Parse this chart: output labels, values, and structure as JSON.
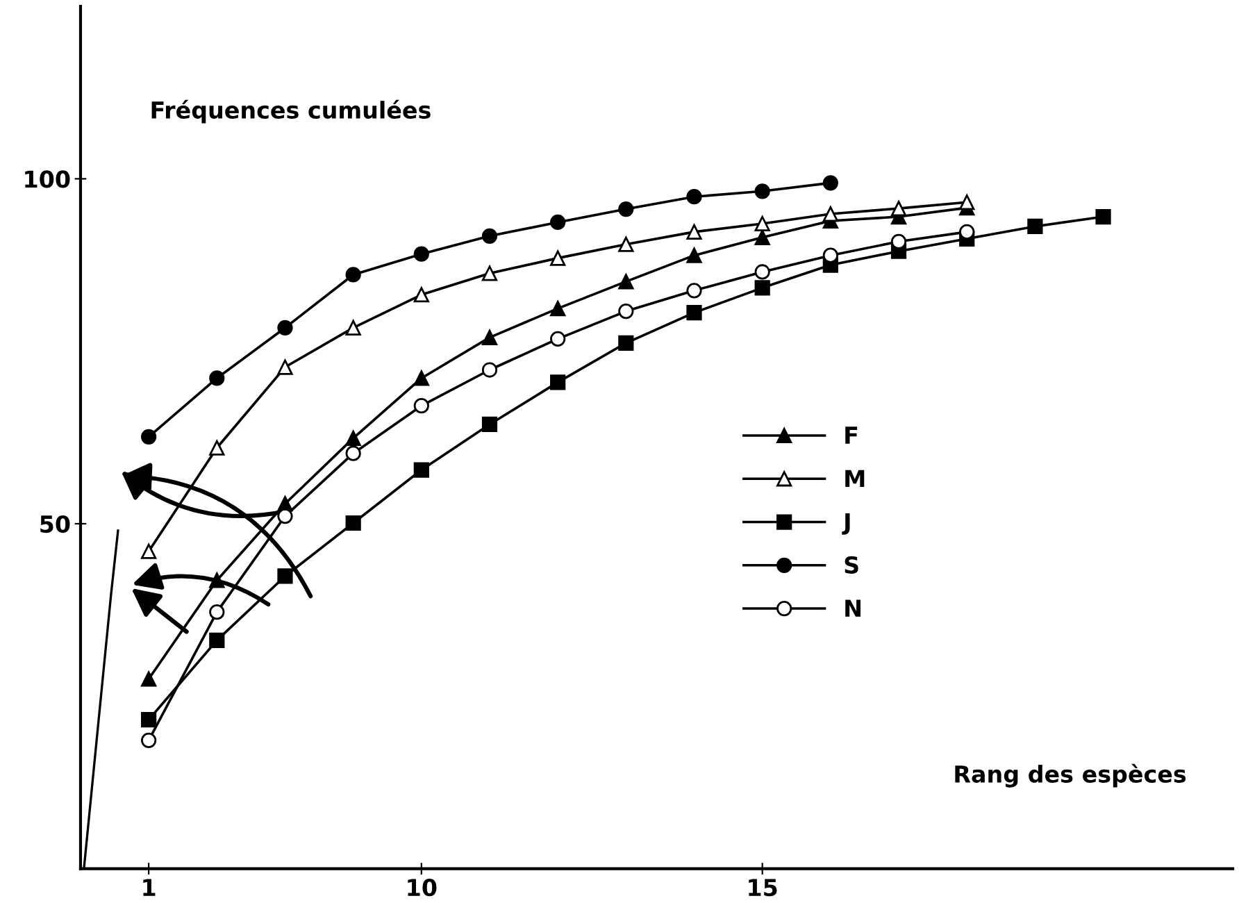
{
  "chart_data": {
    "type": "line",
    "ylabel": "Fréquences cumulées",
    "xlabel": "Rang des espèces",
    "categories": [
      "1",
      null,
      null,
      null,
      "10",
      null,
      null,
      null,
      null,
      "15",
      null,
      null,
      null,
      null,
      null,
      null
    ],
    "ylim": [
      0,
      125
    ],
    "yticks": [
      50,
      100
    ],
    "grid": false,
    "legend": "center right",
    "line_style": "solid",
    "series": [
      {
        "name": "F",
        "color": "#000000",
        "marker": "triangle",
        "values": [
          27.5,
          41.8,
          52.9,
          62.4,
          71.1,
          77.0,
          81.2,
          85.1,
          88.9,
          91.5,
          93.9,
          94.5,
          95.8,
          null,
          null,
          null
        ]
      },
      {
        "name": "M",
        "color": "#ffffff",
        "marker": "triangle",
        "values": [
          46.0,
          61.0,
          72.7,
          78.4,
          83.2,
          86.3,
          88.5,
          90.5,
          92.3,
          93.5,
          94.9,
          95.7,
          96.6,
          null,
          null,
          null
        ]
      },
      {
        "name": "J",
        "color": "#000000",
        "marker": "square",
        "values": [
          21.6,
          33.1,
          42.4,
          50.1,
          57.8,
          64.4,
          70.5,
          76.2,
          80.6,
          84.2,
          87.5,
          89.5,
          91.3,
          93.1,
          94.5,
          null
        ]
      },
      {
        "name": "S",
        "color": "#000000",
        "marker": "circle",
        "values": [
          62.6,
          71.1,
          78.4,
          86.1,
          89.1,
          91.7,
          93.7,
          95.6,
          97.4,
          98.2,
          99.4,
          null,
          null,
          null,
          null,
          null
        ]
      },
      {
        "name": "N",
        "color": "#ffffff",
        "marker": "circle",
        "values": [
          18.6,
          37.2,
          51.1,
          60.2,
          67.1,
          72.3,
          76.8,
          80.8,
          83.8,
          86.5,
          88.9,
          90.9,
          92.3,
          null,
          null,
          null
        ]
      }
    ]
  }
}
